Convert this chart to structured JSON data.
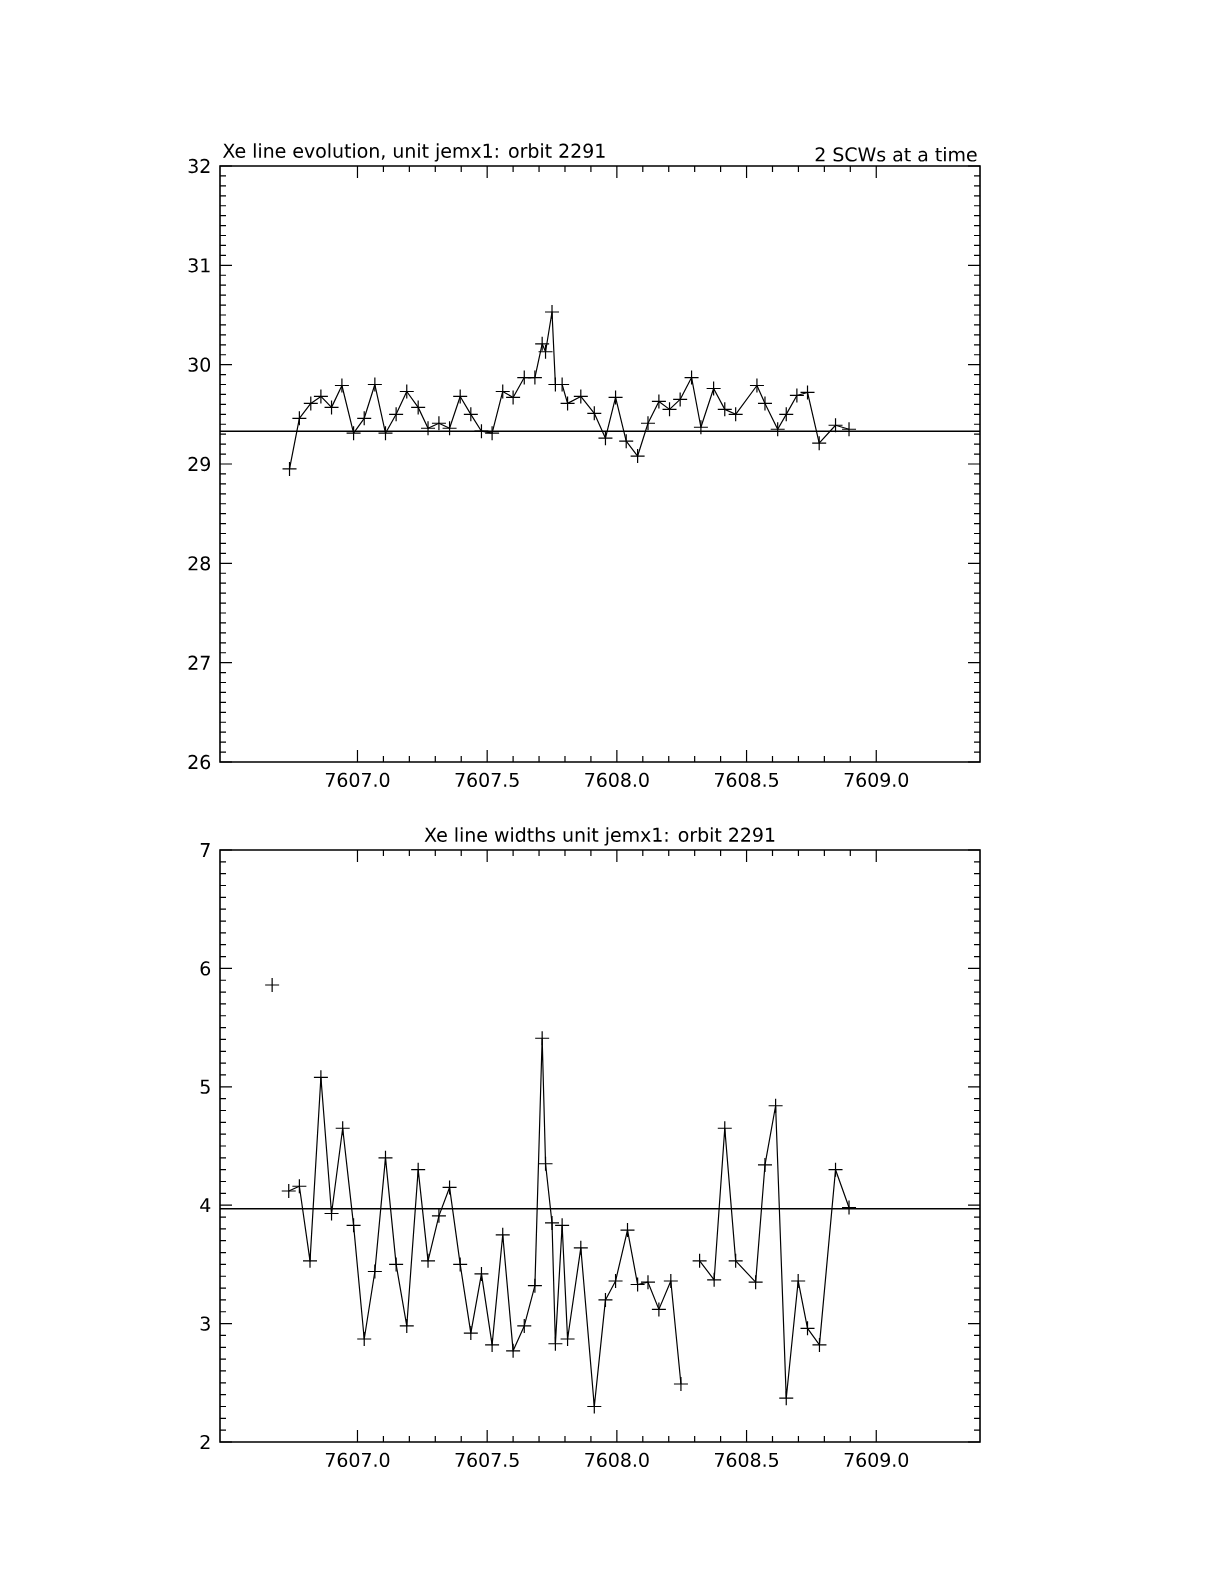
{
  "chart_data": [
    {
      "type": "line",
      "title": "Xe line evolution, unit jemx1: orbit 2291",
      "subtitle": "2 SCWs at a time",
      "marker": "cross",
      "line_style": "solid",
      "color": "#000000",
      "x": [
        7606.738,
        7606.776,
        7606.82,
        7606.859,
        7606.9,
        7606.94,
        7606.985,
        7607.026,
        7607.067,
        7607.108,
        7607.149,
        7607.19,
        7607.234,
        7607.272,
        7607.314,
        7607.355,
        7607.396,
        7607.437,
        7607.478,
        7607.519,
        7607.56,
        7607.6,
        7607.643,
        7607.684,
        7607.712,
        7607.725,
        7607.75,
        7607.763,
        7607.789,
        7607.81,
        7607.861,
        7607.913,
        7607.956,
        7607.995,
        7608.036,
        7608.08,
        7608.12,
        7608.162,
        7608.203,
        7608.244,
        7608.288,
        7608.324,
        7608.373,
        7608.416,
        7608.458,
        7608.54,
        7608.571,
        7608.62,
        7608.653,
        7608.694,
        7608.735,
        7608.78,
        7608.843,
        7608.895
      ],
      "values": [
        28.95,
        29.46,
        29.61,
        29.68,
        29.57,
        29.79,
        29.31,
        29.46,
        29.8,
        29.31,
        29.5,
        29.73,
        29.57,
        29.36,
        29.41,
        29.36,
        29.68,
        29.5,
        29.33,
        29.31,
        29.73,
        29.67,
        29.87,
        29.87,
        30.21,
        30.13,
        30.53,
        29.8,
        29.8,
        29.61,
        29.68,
        29.51,
        29.26,
        29.67,
        29.23,
        29.08,
        29.41,
        29.63,
        29.55,
        29.65,
        29.87,
        29.37,
        29.76,
        29.55,
        29.5,
        29.79,
        29.61,
        29.35,
        29.5,
        29.69,
        29.72,
        29.21,
        29.39,
        29.35
      ],
      "xlim": [
        7606.47,
        7609.4
      ],
      "ylim": [
        26,
        32
      ],
      "xticks": [
        {
          "value": 7607,
          "label": "7607.0"
        },
        {
          "value": 7607.5,
          "label": "7607.5"
        },
        {
          "value": 7608,
          "label": "7608.0"
        },
        {
          "value": 7608.5,
          "label": "7608.5"
        },
        {
          "value": 7609,
          "label": "7609.0"
        }
      ],
      "yticks": [
        26,
        27,
        28,
        29,
        30,
        31,
        32
      ],
      "ref_lines": [
        {
          "axis": "y",
          "value": 29.33
        }
      ]
    },
    {
      "type": "line",
      "title": "Xe line widths unit jemx1: orbit 2291",
      "marker": "cross",
      "line_style": "solid",
      "color": "#000000",
      "x": [
        7606.671,
        7606.7,
        7606.735,
        7606.776,
        7606.817,
        7606.859,
        7606.9,
        7606.943,
        7606.985,
        7607.026,
        7607.067,
        7607.108,
        7607.149,
        7607.19,
        7607.234,
        7607.272,
        7607.314,
        7607.355,
        7607.396,
        7607.437,
        7607.478,
        7607.519,
        7607.56,
        7607.6,
        7607.643,
        7607.684,
        7607.712,
        7607.725,
        7607.75,
        7607.763,
        7607.789,
        7607.81,
        7607.861,
        7607.913,
        7607.956,
        7607.995,
        7608.041,
        7608.08,
        7608.12,
        7608.162,
        7608.208,
        7608.247,
        7608.285,
        7608.319,
        7608.375,
        7608.416,
        7608.458,
        7608.535,
        7608.571,
        7608.612,
        7608.653,
        7608.699,
        7608.735,
        7608.781,
        7608.843,
        7608.895
      ],
      "values": [
        5.86,
        null,
        4.12,
        4.16,
        3.53,
        5.08,
        3.93,
        4.65,
        3.83,
        2.87,
        3.44,
        4.4,
        3.5,
        2.98,
        4.3,
        3.53,
        3.91,
        4.15,
        3.5,
        2.92,
        3.42,
        2.82,
        3.75,
        2.77,
        2.98,
        3.32,
        5.41,
        4.35,
        3.85,
        2.83,
        3.83,
        2.87,
        3.64,
        2.3,
        3.2,
        3.36,
        3.79,
        3.33,
        3.35,
        3.12,
        3.36,
        2.49,
        null,
        3.53,
        3.37,
        4.65,
        3.53,
        3.35,
        4.34,
        4.84,
        2.37,
        3.36,
        2.96,
        2.82,
        4.3,
        3.98
      ],
      "xlim": [
        7606.47,
        7609.4
      ],
      "ylim": [
        2,
        7
      ],
      "xticks": [
        {
          "value": 7607,
          "label": "7607.0"
        },
        {
          "value": 7607.5,
          "label": "7607.5"
        },
        {
          "value": 7608,
          "label": "7608.0"
        },
        {
          "value": 7608.5,
          "label": "7608.5"
        },
        {
          "value": 7609,
          "label": "7609.0"
        }
      ],
      "yticks": [
        2,
        3,
        4,
        5,
        6,
        7
      ],
      "ref_lines": [
        {
          "axis": "y",
          "value": 3.97
        }
      ]
    }
  ]
}
